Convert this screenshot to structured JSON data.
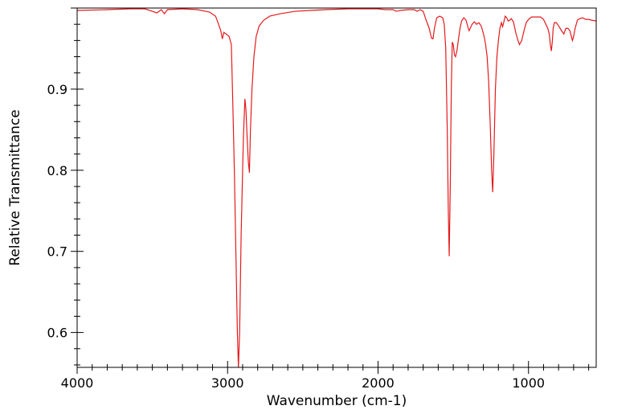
{
  "chart_data": {
    "type": "line",
    "title": "",
    "xlabel": "Wavenumber (cm-1)",
    "ylabel": "Relative Transmittance",
    "xlim": [
      4000,
      550
    ],
    "ylim": [
      0.557,
      1.0
    ],
    "x_reversed": true,
    "grid": false,
    "legend": "none",
    "line_color": "#e41a1c",
    "x_ticks": [
      {
        "value": 4000,
        "label": "4000"
      },
      {
        "value": 3000,
        "label": "3000"
      },
      {
        "value": 2000,
        "label": "2000"
      },
      {
        "value": 1000,
        "label": "1000"
      }
    ],
    "y_ticks": [
      {
        "value": 0.6,
        "label": "0.6"
      },
      {
        "value": 0.7,
        "label": "0.7"
      },
      {
        "value": 0.8,
        "label": "0.8"
      },
      {
        "value": 0.9,
        "label": "0.9"
      }
    ],
    "series": [
      {
        "color": "#e41a1c",
        "points": [
          [
            4000,
            0.997
          ],
          [
            3800,
            0.998
          ],
          [
            3650,
            0.999
          ],
          [
            3550,
            0.999
          ],
          [
            3500,
            0.996
          ],
          [
            3470,
            0.994
          ],
          [
            3440,
            0.998
          ],
          [
            3420,
            0.993
          ],
          [
            3400,
            0.998
          ],
          [
            3300,
            0.999
          ],
          [
            3200,
            0.998
          ],
          [
            3120,
            0.995
          ],
          [
            3080,
            0.99
          ],
          [
            3060,
            0.98
          ],
          [
            3045,
            0.972
          ],
          [
            3035,
            0.962
          ],
          [
            3025,
            0.97
          ],
          [
            3010,
            0.968
          ],
          [
            2990,
            0.965
          ],
          [
            2975,
            0.955
          ],
          [
            2965,
            0.88
          ],
          [
            2955,
            0.8
          ],
          [
            2945,
            0.7
          ],
          [
            2935,
            0.6
          ],
          [
            2928,
            0.557
          ],
          [
            2920,
            0.6
          ],
          [
            2910,
            0.72
          ],
          [
            2895,
            0.84
          ],
          [
            2885,
            0.888
          ],
          [
            2878,
            0.875
          ],
          [
            2870,
            0.84
          ],
          [
            2862,
            0.81
          ],
          [
            2855,
            0.797
          ],
          [
            2848,
            0.85
          ],
          [
            2838,
            0.9
          ],
          [
            2825,
            0.94
          ],
          [
            2810,
            0.965
          ],
          [
            2790,
            0.978
          ],
          [
            2760,
            0.985
          ],
          [
            2720,
            0.99
          ],
          [
            2650,
            0.993
          ],
          [
            2550,
            0.996
          ],
          [
            2450,
            0.997
          ],
          [
            2350,
            0.998
          ],
          [
            2200,
            0.999
          ],
          [
            2100,
            0.999
          ],
          [
            2000,
            0.999
          ],
          [
            1950,
            0.998
          ],
          [
            1900,
            0.998
          ],
          [
            1880,
            0.996
          ],
          [
            1850,
            0.997
          ],
          [
            1800,
            0.998
          ],
          [
            1760,
            0.998
          ],
          [
            1740,
            0.996
          ],
          [
            1720,
            0.998
          ],
          [
            1700,
            0.996
          ],
          [
            1680,
            0.985
          ],
          [
            1660,
            0.975
          ],
          [
            1645,
            0.963
          ],
          [
            1635,
            0.962
          ],
          [
            1625,
            0.975
          ],
          [
            1610,
            0.988
          ],
          [
            1590,
            0.99
          ],
          [
            1570,
            0.988
          ],
          [
            1560,
            0.98
          ],
          [
            1550,
            0.95
          ],
          [
            1540,
            0.85
          ],
          [
            1533,
            0.75
          ],
          [
            1527,
            0.694
          ],
          [
            1520,
            0.78
          ],
          [
            1513,
            0.9
          ],
          [
            1507,
            0.958
          ],
          [
            1500,
            0.955
          ],
          [
            1492,
            0.942
          ],
          [
            1485,
            0.94
          ],
          [
            1475,
            0.948
          ],
          [
            1465,
            0.962
          ],
          [
            1455,
            0.975
          ],
          [
            1445,
            0.984
          ],
          [
            1430,
            0.988
          ],
          [
            1415,
            0.985
          ],
          [
            1405,
            0.978
          ],
          [
            1395,
            0.972
          ],
          [
            1385,
            0.976
          ],
          [
            1375,
            0.98
          ],
          [
            1360,
            0.983
          ],
          [
            1345,
            0.98
          ],
          [
            1330,
            0.982
          ],
          [
            1315,
            0.978
          ],
          [
            1305,
            0.972
          ],
          [
            1295,
            0.965
          ],
          [
            1285,
            0.955
          ],
          [
            1275,
            0.94
          ],
          [
            1265,
            0.91
          ],
          [
            1255,
            0.86
          ],
          [
            1245,
            0.8
          ],
          [
            1238,
            0.773
          ],
          [
            1230,
            0.82
          ],
          [
            1220,
            0.9
          ],
          [
            1210,
            0.94
          ],
          [
            1200,
            0.96
          ],
          [
            1190,
            0.975
          ],
          [
            1180,
            0.982
          ],
          [
            1172,
            0.977
          ],
          [
            1165,
            0.982
          ],
          [
            1155,
            0.99
          ],
          [
            1145,
            0.988
          ],
          [
            1135,
            0.984
          ],
          [
            1125,
            0.985
          ],
          [
            1115,
            0.987
          ],
          [
            1100,
            0.983
          ],
          [
            1085,
            0.97
          ],
          [
            1070,
            0.96
          ],
          [
            1060,
            0.955
          ],
          [
            1045,
            0.96
          ],
          [
            1030,
            0.972
          ],
          [
            1015,
            0.982
          ],
          [
            1000,
            0.986
          ],
          [
            980,
            0.989
          ],
          [
            960,
            0.989
          ],
          [
            940,
            0.989
          ],
          [
            920,
            0.989
          ],
          [
            900,
            0.986
          ],
          [
            885,
            0.98
          ],
          [
            872,
            0.975
          ],
          [
            862,
            0.968
          ],
          [
            855,
            0.955
          ],
          [
            848,
            0.947
          ],
          [
            842,
            0.958
          ],
          [
            836,
            0.975
          ],
          [
            828,
            0.982
          ],
          [
            815,
            0.982
          ],
          [
            800,
            0.978
          ],
          [
            780,
            0.972
          ],
          [
            765,
            0.968
          ],
          [
            752,
            0.975
          ],
          [
            738,
            0.975
          ],
          [
            725,
            0.972
          ],
          [
            715,
            0.965
          ],
          [
            708,
            0.96
          ],
          [
            700,
            0.965
          ],
          [
            690,
            0.975
          ],
          [
            675,
            0.985
          ],
          [
            660,
            0.987
          ],
          [
            640,
            0.988
          ],
          [
            620,
            0.986
          ],
          [
            600,
            0.986
          ],
          [
            580,
            0.985
          ],
          [
            550,
            0.984
          ]
        ]
      }
    ]
  }
}
